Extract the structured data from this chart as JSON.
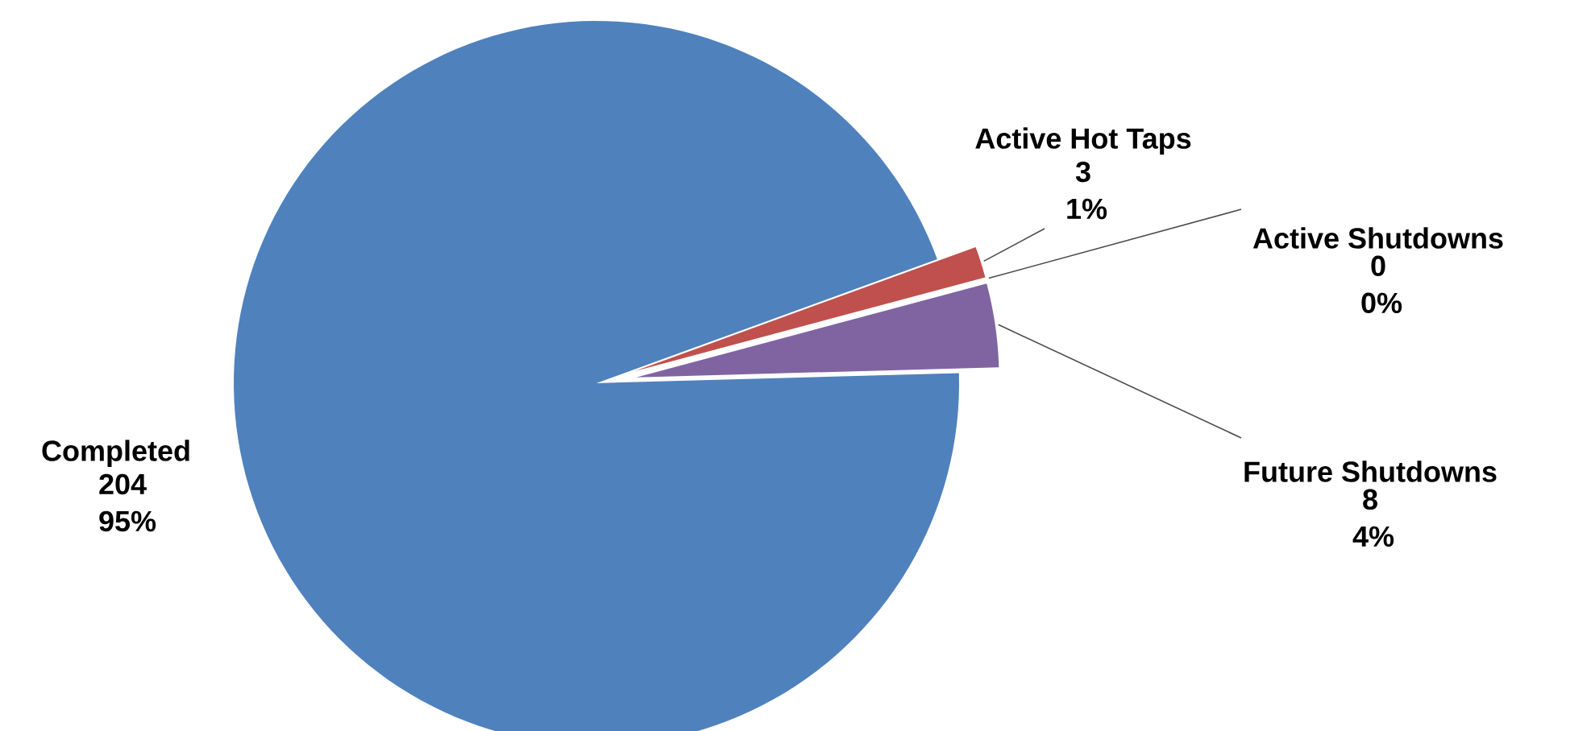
{
  "chart_data": {
    "type": "pie",
    "categories": [
      "Completed",
      "Active Hot Taps",
      "Active Shutdowns",
      "Future Shutdowns"
    ],
    "values": [
      204,
      3,
      0,
      8
    ],
    "colors": [
      "#4f81bd",
      "#c0504d",
      "#9bbb59",
      "#8064a2"
    ],
    "value_labels": [
      "204 95%",
      "3 1%",
      "0 0%",
      "8 4%"
    ]
  }
}
